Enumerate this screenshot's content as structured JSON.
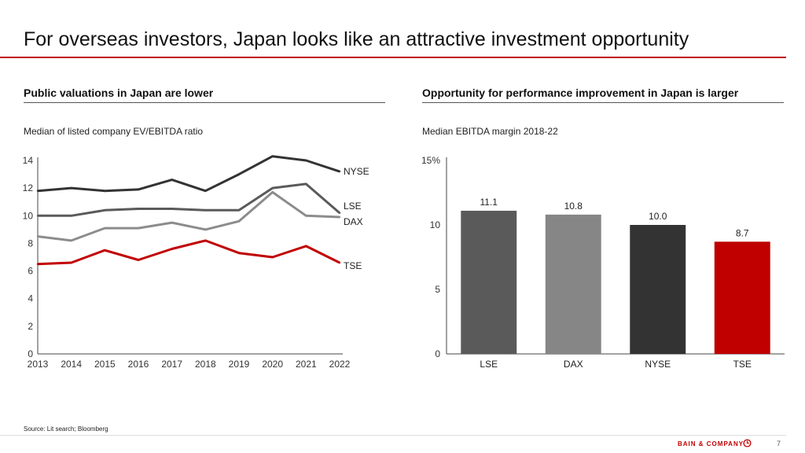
{
  "slide": {
    "title": "For overseas investors, Japan looks like an attractive investment opportunity",
    "source": "Source: Lit search; Bloomberg",
    "brand": "BAIN & COMPANY",
    "page_number": "7"
  },
  "left_panel": {
    "heading": "Public valuations in Japan are lower",
    "subtitle": "Median of listed company EV/EBITDA ratio"
  },
  "right_panel": {
    "heading": "Opportunity for performance improvement in Japan is larger",
    "subtitle": "Median EBITDA margin 2018-22"
  },
  "colors": {
    "accent": "#c00000",
    "nyse": "#333333",
    "lse": "#5a5a5a",
    "dax": "#8c8c8c",
    "tse": "#c00000"
  },
  "chart_data": [
    {
      "type": "line",
      "x": [
        "2013",
        "2014",
        "2015",
        "2016",
        "2017",
        "2018",
        "2019",
        "2020",
        "2021",
        "2022"
      ],
      "ylim": [
        0,
        14
      ],
      "yticks": [
        "0",
        "2",
        "4",
        "6",
        "8",
        "10",
        "12",
        "14"
      ],
      "grid": false,
      "series": [
        {
          "name": "NYSE",
          "color": "#333333",
          "values": [
            11.8,
            12.0,
            11.8,
            11.9,
            12.6,
            11.8,
            13.0,
            14.3,
            14.0,
            13.2
          ]
        },
        {
          "name": "LSE",
          "color": "#5a5a5a",
          "values": [
            10.0,
            10.0,
            10.4,
            10.5,
            10.5,
            10.4,
            10.4,
            12.0,
            12.3,
            10.2
          ]
        },
        {
          "name": "DAX",
          "color": "#8c8c8c",
          "values": [
            8.5,
            8.2,
            9.1,
            9.1,
            9.5,
            9.0,
            9.6,
            11.7,
            10.0,
            9.9
          ]
        },
        {
          "name": "TSE",
          "color": "#c00000",
          "values": [
            6.5,
            6.6,
            7.5,
            6.8,
            7.6,
            8.2,
            7.3,
            7.0,
            7.8,
            6.6
          ]
        }
      ]
    },
    {
      "type": "bar",
      "categories": [
        "LSE",
        "DAX",
        "NYSE",
        "TSE"
      ],
      "values": [
        11.1,
        10.8,
        10.0,
        8.7
      ],
      "value_labels": [
        "11.1",
        "10.8",
        "10.0",
        "8.7"
      ],
      "colors": [
        "#5a5a5a",
        "#868686",
        "#333333",
        "#c00000"
      ],
      "ylim": [
        0,
        15
      ],
      "yticks": [
        "0",
        "5",
        "10",
        "15%"
      ],
      "grid": false
    }
  ]
}
